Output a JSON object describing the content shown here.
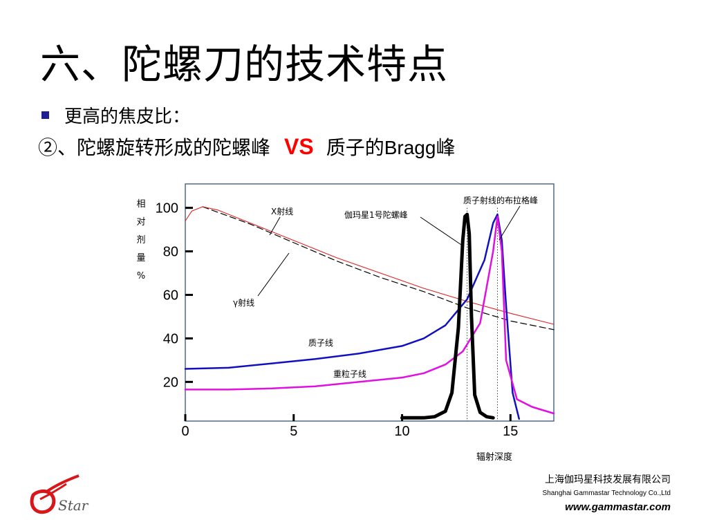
{
  "slide": {
    "title": "六、陀螺刀的技术特点",
    "bullet": "更高的焦皮比：",
    "subtitle_prefix": "②、陀螺旋转形成的陀螺峰",
    "vs": "VS",
    "subtitle_suffix_cn": "质子的",
    "subtitle_suffix_latin": "Bragg",
    "subtitle_suffix_end": "峰"
  },
  "chart_data": {
    "type": "line",
    "ylabel_chars": [
      "相",
      "对",
      "剂",
      "量",
      "%"
    ],
    "xlabel": "辐射深度",
    "xlim": [
      0,
      17
    ],
    "ylim": [
      2,
      111
    ],
    "x_ticks": [
      0,
      5,
      10,
      15
    ],
    "y_ticks": [
      20,
      40,
      60,
      80,
      100
    ],
    "series": [
      {
        "name": "X射线",
        "color": "#000000",
        "style": "dashed",
        "x": [
          0.8,
          3,
          5,
          7,
          9,
          11,
          13,
          15,
          17
        ],
        "y": [
          100.5,
          92.5,
          84,
          75.5,
          68,
          61.5,
          54,
          48,
          44
        ]
      },
      {
        "name": "γ射线",
        "color": "#e02020",
        "style": "solid",
        "x": [
          0,
          0.3,
          0.8,
          1.5,
          3,
          5,
          7,
          9,
          11,
          13,
          15,
          17
        ],
        "y": [
          94,
          98.5,
          100.5,
          99,
          93,
          85,
          77,
          70,
          63,
          57,
          51.5,
          46.5
        ]
      },
      {
        "name": "质子线",
        "color": "#1010c0",
        "style": "solid",
        "x": [
          0,
          2,
          4,
          6,
          8,
          10,
          11,
          12,
          13,
          13.8,
          14.2,
          14.4,
          14.6,
          14.8,
          15.1,
          15.4
        ],
        "y": [
          26,
          26.5,
          28.5,
          30.5,
          33,
          36.5,
          40,
          46,
          58,
          76,
          93,
          97,
          85,
          55,
          15,
          3
        ]
      },
      {
        "name": "重粒子线",
        "color": "#e010e0",
        "style": "solid",
        "x": [
          0,
          2,
          4,
          6,
          8,
          10,
          11,
          12,
          12.8,
          13.6,
          14.2,
          14.4,
          14.6,
          14.8,
          15.3,
          16,
          17
        ],
        "y": [
          16.5,
          16.5,
          17,
          18,
          20,
          22,
          24,
          28,
          34,
          47,
          80,
          96,
          80,
          30,
          12,
          8.5,
          5.5
        ]
      },
      {
        "name": "伽玛星1号陀螺峰",
        "color": "#000000",
        "style": "solid",
        "x": [
          10,
          11,
          11.5,
          12,
          12.3,
          12.6,
          12.8,
          12.9,
          13.0,
          13.1,
          13.2,
          13.35,
          13.6,
          13.9,
          14.2
        ],
        "y": [
          3.5,
          3.5,
          4,
          6.5,
          15,
          45,
          85,
          96,
          97,
          88,
          50,
          14,
          6,
          4,
          3.5
        ]
      }
    ],
    "annotations": [
      "X射线",
      "γ射线",
      "质子线",
      "重粒子线",
      "伽玛星1号陀螺峰",
      "质子射线的布拉格峰"
    ]
  },
  "footer": {
    "company_cn": "上海伽玛星科技发展有限公司",
    "company_en": "Shanghai Gammastar Technology Co.,Ltd",
    "website": "www.gammastar.com",
    "logo_text": "Star"
  }
}
